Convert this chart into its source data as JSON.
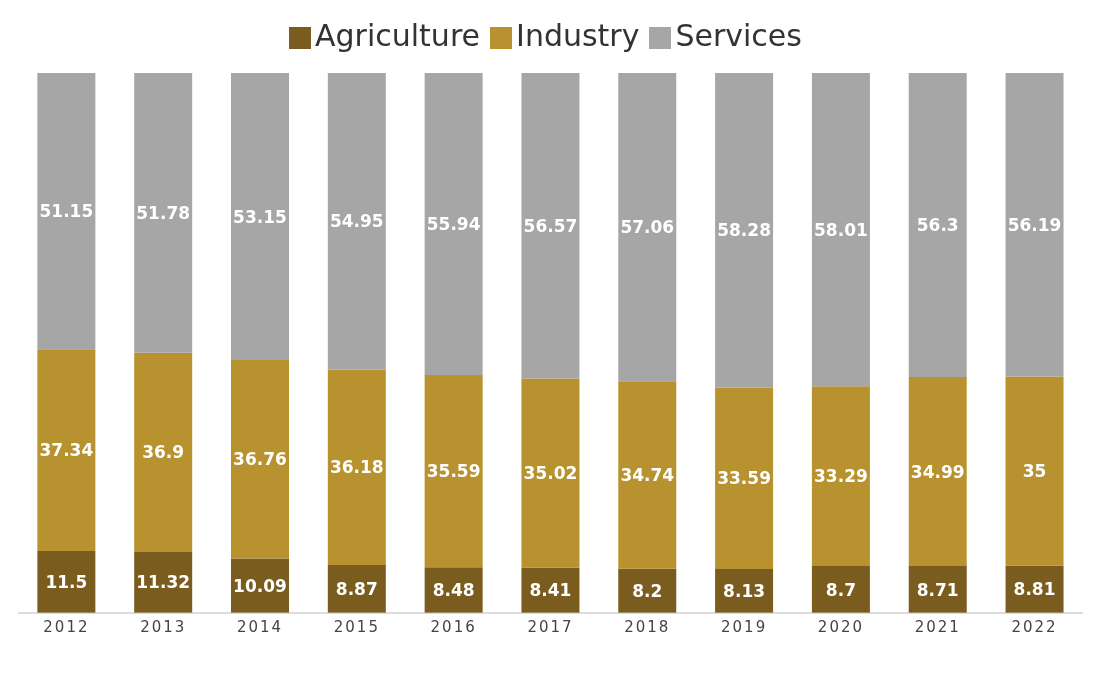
{
  "chart_data": {
    "type": "bar",
    "stacked": true,
    "data_labels": true,
    "legend": "top",
    "grid": false,
    "categories": [
      "2012",
      "2013",
      "2014",
      "2015",
      "2016",
      "2017",
      "2018",
      "2019",
      "2020",
      "2021",
      "2022"
    ],
    "series": [
      {
        "name": "Agriculture",
        "color": "#7a5c1e",
        "values": [
          11.5,
          11.32,
          10.09,
          8.87,
          8.48,
          8.41,
          8.2,
          8.13,
          8.7,
          8.71,
          8.81
        ]
      },
      {
        "name": "Industry",
        "color": "#b8922f",
        "values": [
          37.34,
          36.9,
          36.76,
          36.18,
          35.59,
          35.02,
          34.74,
          33.59,
          33.29,
          34.99,
          35
        ]
      },
      {
        "name": "Services",
        "color": "#a6a6a6",
        "values": [
          51.15,
          51.78,
          53.15,
          54.95,
          55.94,
          56.57,
          57.06,
          58.28,
          58.01,
          56.3,
          56.19
        ]
      }
    ]
  }
}
